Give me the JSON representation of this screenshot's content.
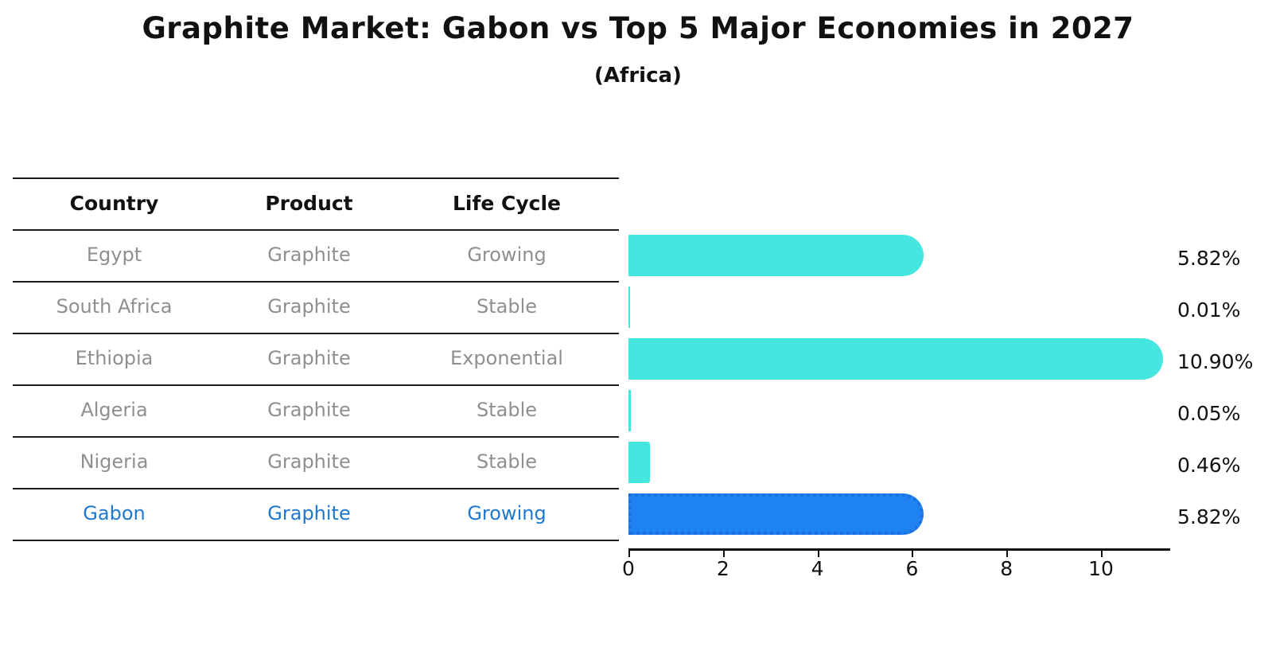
{
  "title": "Graphite Market: Gabon vs Top 5 Major Economies in 2027",
  "subtitle": "(Africa)",
  "table": {
    "headers": [
      "Country",
      "Product",
      "Life Cycle"
    ],
    "rows": [
      {
        "country": "Egypt",
        "product": "Graphite",
        "life_cycle": "Growing"
      },
      {
        "country": "South Africa",
        "product": "Graphite",
        "life_cycle": "Stable"
      },
      {
        "country": "Ethiopia",
        "product": "Graphite",
        "life_cycle": "Exponential"
      },
      {
        "country": "Algeria",
        "product": "Graphite",
        "life_cycle": "Stable"
      },
      {
        "country": "Nigeria",
        "product": "Graphite",
        "life_cycle": "Stable"
      },
      {
        "country": "Gabon",
        "product": "Graphite",
        "life_cycle": "Growing"
      }
    ]
  },
  "chart_data": {
    "type": "bar",
    "orientation": "horizontal",
    "title": "Graphite Market: Gabon vs Top 5 Major Economies in 2027",
    "subtitle": "(Africa)",
    "categories": [
      "Egypt",
      "South Africa",
      "Ethiopia",
      "Algeria",
      "Nigeria",
      "Gabon"
    ],
    "values": [
      5.82,
      0.01,
      10.9,
      0.05,
      0.46,
      5.82
    ],
    "value_labels": [
      "5.82%",
      "0.01%",
      "10.90%",
      "0.05%",
      "0.46%",
      "5.82%"
    ],
    "unit": "percent",
    "x_ticks": [
      0,
      2,
      4,
      6,
      8,
      10
    ],
    "x_tick_labels": [
      "0",
      "2",
      "4",
      "6",
      "8",
      "10"
    ],
    "xlim": [
      0,
      11.45
    ],
    "grid": false,
    "legend": false,
    "highlight_index": 5,
    "colors": {
      "bar": "#45E6E0",
      "highlight_bar": "#1E82F0",
      "highlight_border": "#1A6FDD",
      "highlight_text": "#1F78D1",
      "text": "#111111",
      "muted_text": "#8F8F8F"
    }
  }
}
